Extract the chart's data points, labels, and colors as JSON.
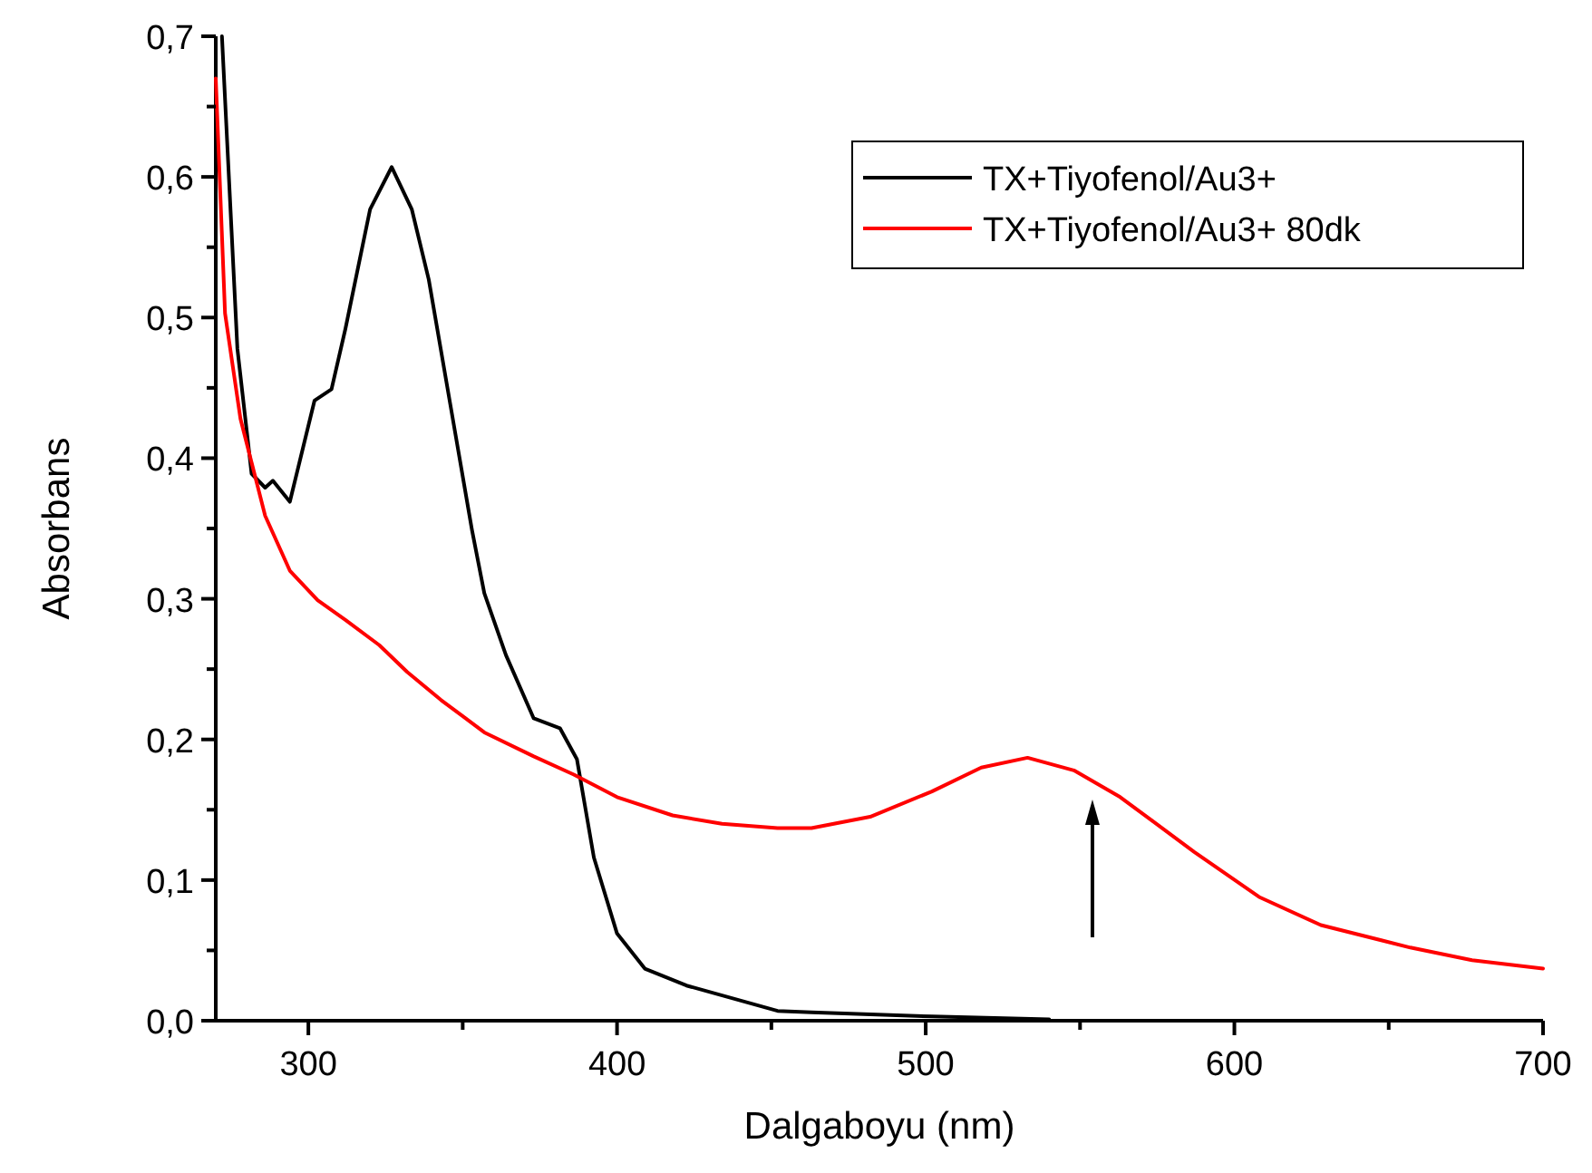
{
  "chart_data": {
    "type": "line",
    "xlabel": "Dalgaboyu (nm)",
    "ylabel": "Absorbans",
    "xlim": [
      270,
      700
    ],
    "ylim": [
      0,
      0.7
    ],
    "xticks": [
      300,
      {
        "value": 350,
        "label": null
      },
      400,
      {
        "value": 450,
        "label": null
      },
      500,
      {
        "value": 550,
        "label": null
      },
      600,
      {
        "value": 650,
        "label": null
      },
      700
    ],
    "yticks": [
      {
        "value": 0,
        "label": "0,0"
      },
      {
        "value": 0.05,
        "label": null
      },
      {
        "value": 0.1,
        "label": "0,1"
      },
      {
        "value": 0.15,
        "label": null
      },
      {
        "value": 0.2,
        "label": "0,2"
      },
      {
        "value": 0.25,
        "label": null
      },
      {
        "value": 0.3,
        "label": "0,3"
      },
      {
        "value": 0.35,
        "label": null
      },
      {
        "value": 0.4,
        "label": "0,4"
      },
      {
        "value": 0.45,
        "label": null
      },
      {
        "value": 0.5,
        "label": "0,5"
      },
      {
        "value": 0.55,
        "label": null
      },
      {
        "value": 0.6,
        "label": "0,6"
      },
      {
        "value": 0.65,
        "label": null
      },
      {
        "value": 0.7,
        "label": "0,7"
      }
    ],
    "grid": false,
    "legend": "top right",
    "marker": "none",
    "line_style": "solid",
    "series": [
      {
        "name": "TX+Tiyofenol/Au3+",
        "color": "#000000",
        "x": [
          272,
          277,
          281.6,
          286,
          288.5,
          294,
          302,
          307.5,
          312,
          320,
          327,
          333.5,
          339,
          346,
          353,
          357,
          364,
          373,
          381.5,
          387,
          392.5,
          400,
          409,
          422.5,
          452,
          463,
          502,
          540
        ],
        "values": [
          0.7,
          0.478,
          0.389,
          0.379,
          0.384,
          0.369,
          0.441,
          0.449,
          0.492,
          0.577,
          0.607,
          0.577,
          0.527,
          0.438,
          0.349,
          0.304,
          0.26,
          0.215,
          0.208,
          0.186,
          0.116,
          0.062,
          0.037,
          0.025,
          0.007,
          0.006,
          0.003,
          0.001
        ]
      },
      {
        "name": "TX+Tiyofenol/Au3+ 80dk",
        "color": "#ff0000",
        "x": [
          270,
          273,
          278,
          286,
          294,
          303,
          312,
          323,
          332,
          343,
          357,
          373,
          386,
          400,
          418,
          434,
          452,
          463,
          482,
          502,
          518,
          533,
          548,
          563,
          587,
          608,
          628,
          657,
          677,
          700
        ],
        "values": [
          0.67,
          0.503,
          0.428,
          0.359,
          0.32,
          0.299,
          0.285,
          0.267,
          0.248,
          0.228,
          0.205,
          0.188,
          0.175,
          0.159,
          0.146,
          0.14,
          0.137,
          0.137,
          0.145,
          0.163,
          0.18,
          0.187,
          0.178,
          0.159,
          0.12,
          0.088,
          0.068,
          0.052,
          0.043,
          0.037
        ]
      }
    ]
  }
}
